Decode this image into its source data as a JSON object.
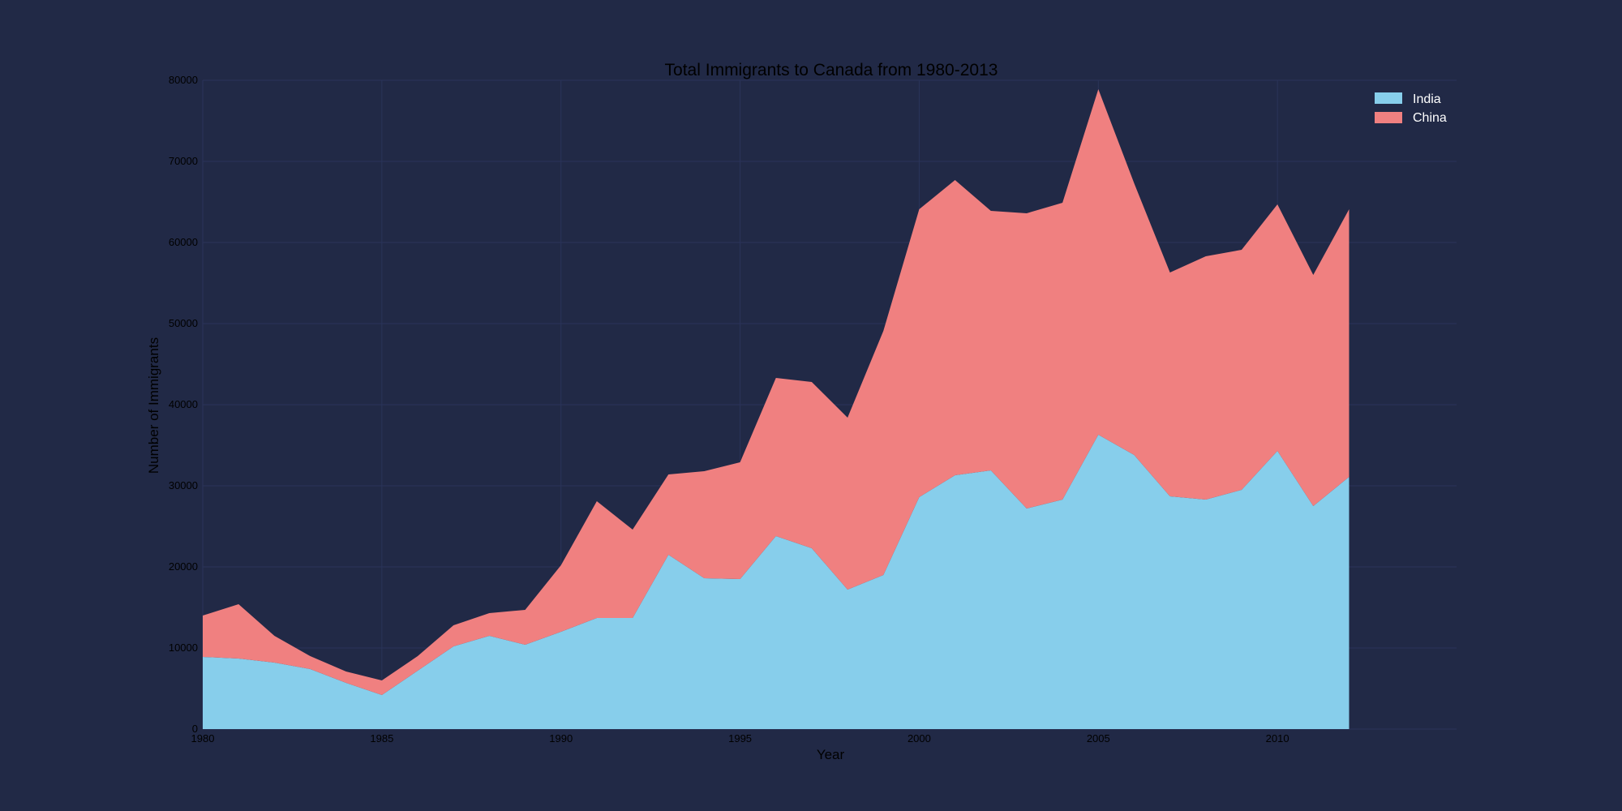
{
  "colors": {
    "background": "#212946",
    "grid": "#2a3459",
    "india": "#87ceeb",
    "china": "#f08080"
  },
  "chart_data": {
    "type": "area",
    "stacked": true,
    "title": "Total Immigrants to Canada from 1980-2013",
    "xlabel": "Year",
    "ylabel": "Number of Immigrants",
    "xlim": [
      1980,
      2015
    ],
    "ylim": [
      0,
      80000
    ],
    "xticks": [
      1980,
      1985,
      1990,
      1995,
      2000,
      2005,
      2010
    ],
    "yticks": [
      0,
      10000,
      20000,
      30000,
      40000,
      50000,
      60000,
      70000,
      80000
    ],
    "grid": true,
    "legend_position": "top-right",
    "x": [
      1980,
      1981,
      1982,
      1983,
      1984,
      1985,
      1986,
      1987,
      1988,
      1989,
      1990,
      1991,
      1992,
      1993,
      1994,
      1995,
      1996,
      1997,
      1998,
      1999,
      2000,
      2001,
      2002,
      2003,
      2004,
      2005,
      2006,
      2007,
      2008,
      2009,
      2010,
      2011,
      2012
    ],
    "series": [
      {
        "name": "India",
        "color": "#87ceeb",
        "values": [
          8900,
          8700,
          8200,
          7400,
          5700,
          4200,
          7200,
          10200,
          11500,
          10400,
          12000,
          13700,
          13700,
          21500,
          18600,
          18500,
          23800,
          22300,
          17200,
          19000,
          28600,
          31300,
          31900,
          27200,
          28300,
          36300,
          33800,
          28700,
          28300,
          29500,
          34300,
          27500,
          31100
        ]
      },
      {
        "name": "China",
        "color": "#f08080",
        "values": [
          5100,
          6700,
          3300,
          1600,
          1400,
          1800,
          1800,
          2600,
          2800,
          4300,
          8200,
          14400,
          10900,
          9900,
          13200,
          14400,
          19500,
          20500,
          21200,
          30100,
          35500,
          36400,
          32000,
          36400,
          36600,
          42600,
          33500,
          27600,
          30000,
          29600,
          30400,
          28500,
          33000
        ]
      }
    ]
  }
}
